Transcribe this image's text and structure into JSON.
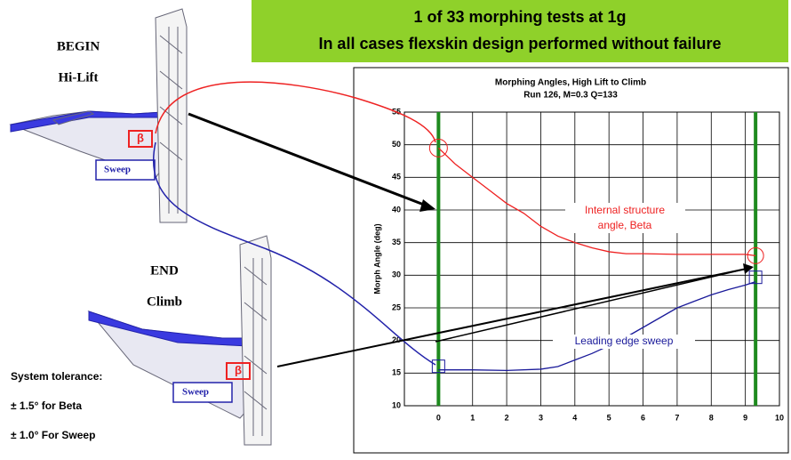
{
  "banner": {
    "line1": "1 of 33 morphing tests at 1g",
    "line2": "In all cases flexskin design performed without failure"
  },
  "left": {
    "begin": "BEGIN",
    "begin_sub": "Hi-Lift",
    "end": "END",
    "end_sub": "Climb",
    "sweep_top": "Sweep",
    "sweep_bottom": "Sweep",
    "beta_top": "β",
    "beta_bottom": "β",
    "tolerance": "System tolerance:",
    "tol_beta": "± 1.5° for Beta",
    "tol_sweep": "± 1.0° For Sweep"
  },
  "chart_data": {
    "type": "line",
    "title": "Morphing Angles, High Lift to Climb",
    "subtitle": "Run 126, M=0.3 Q=133",
    "y_label": "Morph Angle (deg)",
    "series": [
      {
        "name": "Internal structure angle, Beta",
        "color": "#ee2020",
        "x": [
          0,
          0.5,
          1,
          1.5,
          2,
          2.5,
          3,
          3.5,
          4,
          4.5,
          5,
          5.5,
          6,
          7,
          8,
          9,
          9.3
        ],
        "values": [
          49.5,
          47,
          45,
          43,
          41,
          39.5,
          37.5,
          36,
          35,
          34.2,
          33.6,
          33.3,
          33.3,
          33.2,
          33.2,
          33.2,
          33
        ]
      },
      {
        "name": "Leading edge sweep",
        "color": "#1a1a9a",
        "x": [
          0,
          0.5,
          1,
          2,
          3,
          3.5,
          4,
          4.5,
          5,
          5.5,
          6,
          6.5,
          7,
          7.5,
          8,
          8.5,
          9,
          9.3
        ],
        "values": [
          15.5,
          15.5,
          15.5,
          15.4,
          15.6,
          16,
          17,
          18,
          19.2,
          20.5,
          22,
          23.5,
          25,
          26,
          27,
          27.8,
          28.5,
          29
        ]
      }
    ],
    "vlines": [
      0,
      9.3
    ],
    "vline_color": "#1e8a1e",
    "xlim": [
      -1,
      10
    ],
    "xticks": [
      0,
      1,
      2,
      3,
      4,
      5,
      6,
      7,
      8,
      9,
      10
    ],
    "ylim": [
      10,
      55
    ],
    "yticks": [
      10,
      15,
      20,
      25,
      30,
      35,
      40,
      45,
      50,
      55
    ],
    "grid": true
  }
}
